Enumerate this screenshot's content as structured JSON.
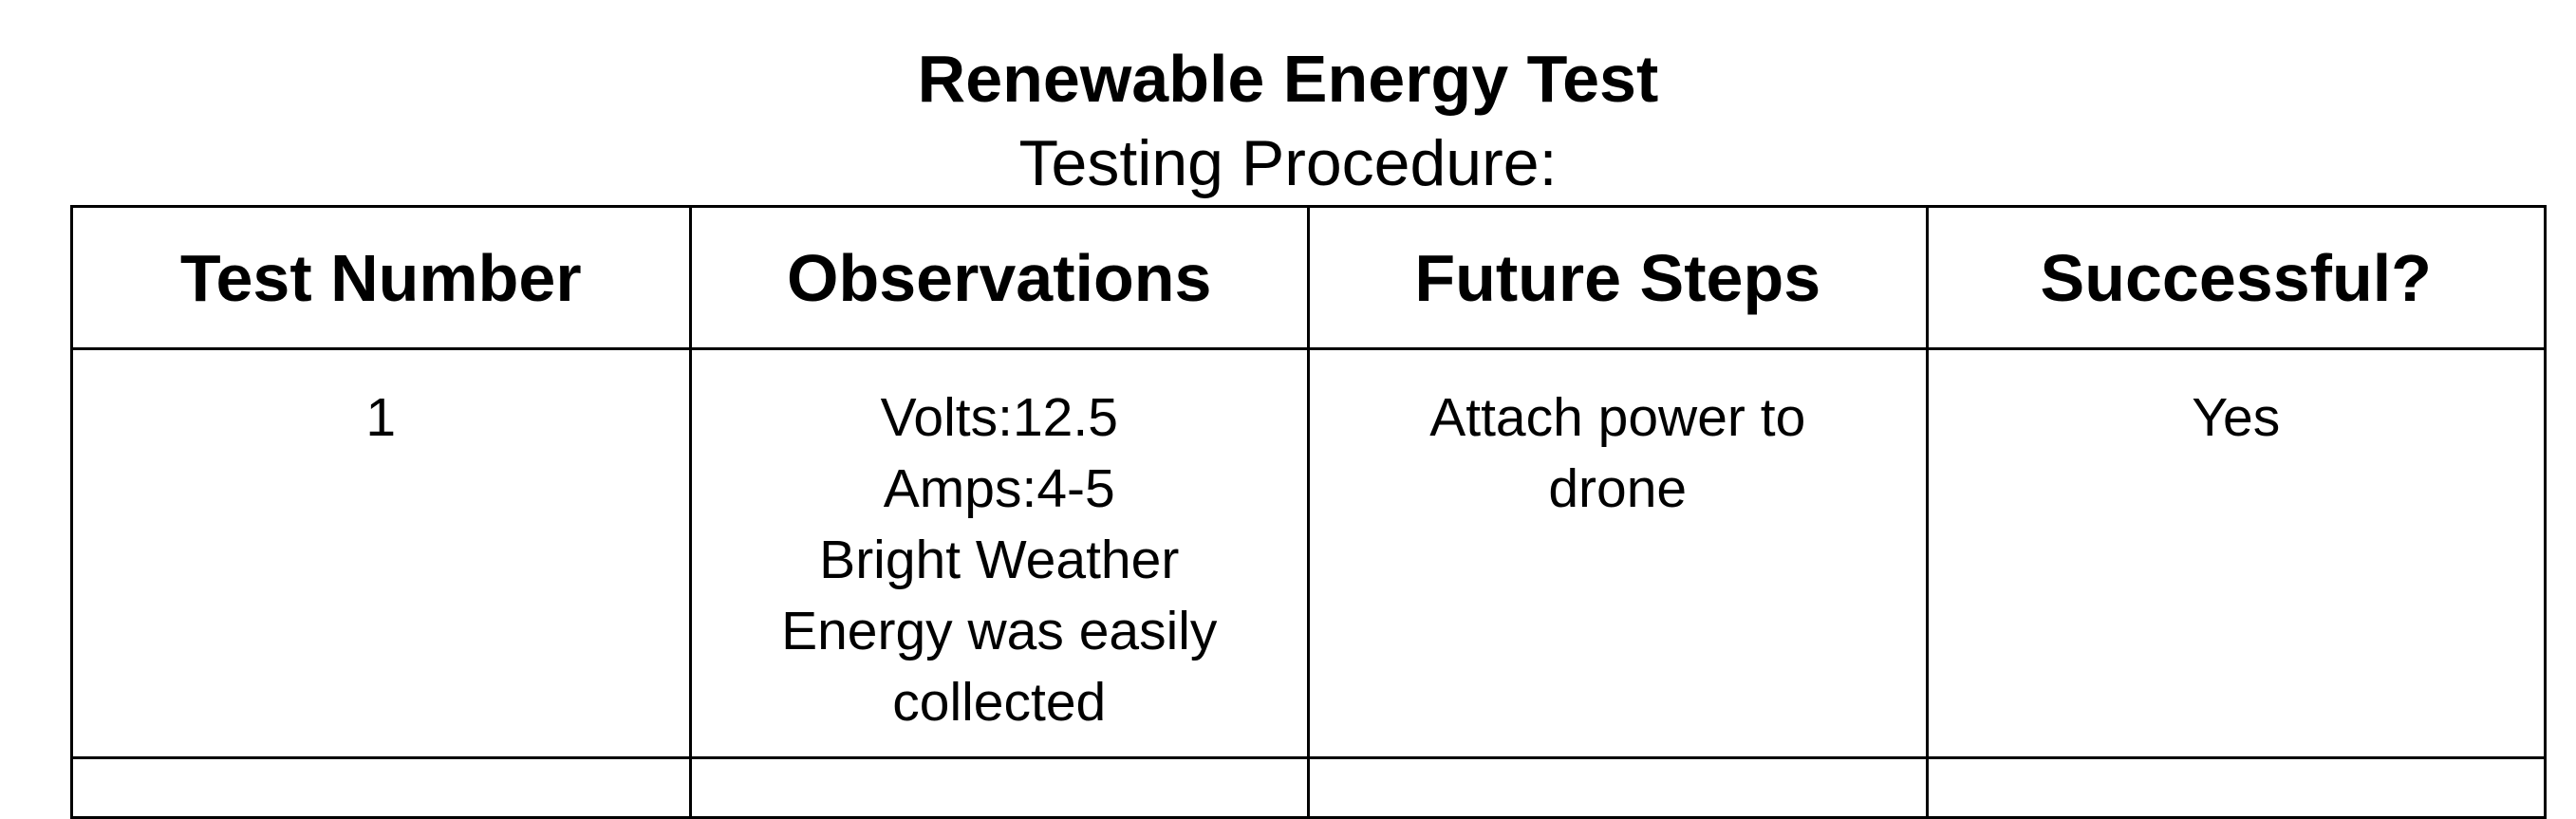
{
  "document": {
    "title": "Renewable Energy Test",
    "subtitle": "Testing Procedure:"
  },
  "table": {
    "headers": [
      "Test Number",
      "Observations",
      "Future Steps",
      "Successful?"
    ],
    "rows": [
      {
        "test_number": "1",
        "observations": [
          "Volts:12.5",
          "Amps:4-5",
          "Bright Weather",
          "Energy was easily",
          "collected"
        ],
        "future_steps": [
          "Attach power to",
          "drone"
        ],
        "successful": "Yes"
      }
    ]
  }
}
